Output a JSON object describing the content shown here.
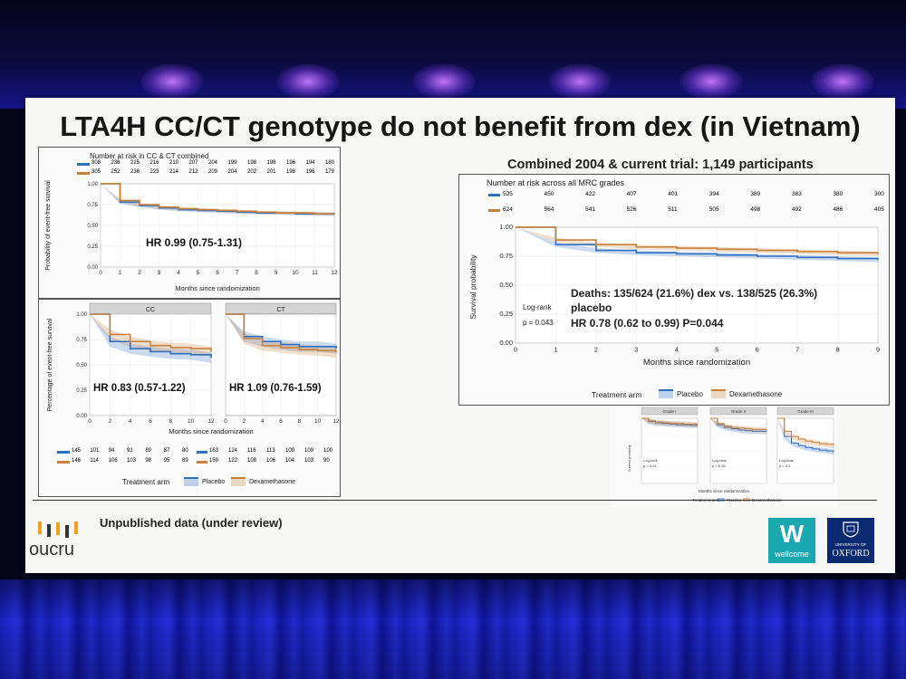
{
  "slide": {
    "title": "LTA4H CC/CT genotype do not benefit from dex (in Vietnam)",
    "footer_note": "Unpublished data (under review)",
    "logo_oucru": "oucru",
    "logo_wellcome_letter": "W",
    "logo_wellcome": "wellcome",
    "logo_oxford_small": "UNIVERSITY OF",
    "logo_oxford": "OXFORD"
  },
  "colors": {
    "placebo": "#2f6fc0",
    "dex": "#c8803a",
    "title": "#161616",
    "screen": "#f6f6f4"
  },
  "left_top": {
    "risk_title": "Number at risk in CC & CT combined",
    "risk_placebo": [
      "308",
      "238",
      "225",
      "216",
      "210",
      "207",
      "204",
      "199",
      "198",
      "198",
      "196",
      "194",
      "180"
    ],
    "risk_dex": [
      "305",
      "252",
      "236",
      "223",
      "214",
      "212",
      "209",
      "204",
      "202",
      "201",
      "198",
      "196",
      "179"
    ],
    "ylabel": "Probability of event-free survival",
    "xlabel": "Months since randomization",
    "yticks": [
      "1.00",
      "0.75",
      "0.50",
      "0.25",
      "0.00"
    ],
    "xticks": [
      "0",
      "1",
      "2",
      "3",
      "4",
      "5",
      "6",
      "7",
      "8",
      "9",
      "10",
      "11",
      "12"
    ],
    "hr_text": "HR 0.99 (0.75-1.31)"
  },
  "left_bottom": {
    "ylabel": "Percentage of event-free survival",
    "xlabel": "Months since randomization",
    "yticks": [
      "1.00",
      "0.75",
      "0.50",
      "0.25",
      "0.00"
    ],
    "xticks": [
      "0",
      "2",
      "4",
      "6",
      "8",
      "10",
      "12"
    ],
    "cc_title": "CC",
    "ct_title": "CT",
    "cc_hr": "HR 0.83 (0.57-1.22)",
    "ct_hr": "HR 1.09 (0.76-1.59)",
    "cc_risk_placebo": [
      "145",
      "101",
      "94",
      "91",
      "89",
      "87",
      "80"
    ],
    "cc_risk_dex": [
      "146",
      "114",
      "106",
      "103",
      "98",
      "95",
      "89"
    ],
    "ct_risk_placebo": [
      "163",
      "124",
      "116",
      "113",
      "109",
      "109",
      "100"
    ],
    "ct_risk_dex": [
      "159",
      "122",
      "108",
      "106",
      "104",
      "103",
      "90"
    ],
    "legend_title": "Treatment arm",
    "legend_placebo": "Placebo",
    "legend_dex": "Dexamethasone"
  },
  "right": {
    "header": "Combined 2004 & current trial: 1,149 participants",
    "risk_title": "Number at risk across all MRC grades",
    "risk_placebo": [
      "525",
      "450",
      "422",
      "407",
      "401",
      "394",
      "389",
      "383",
      "380",
      "300"
    ],
    "risk_dex": [
      "624",
      "564",
      "541",
      "526",
      "511",
      "505",
      "498",
      "492",
      "486",
      "405"
    ],
    "ylabel": "Survival probability",
    "xlabel": "Months since randomization",
    "yticks": [
      "1.00",
      "0.75",
      "0.50",
      "0.25",
      "0.00"
    ],
    "xticks": [
      "0",
      "1",
      "2",
      "3",
      "4",
      "5",
      "6",
      "7",
      "8",
      "9"
    ],
    "deaths_line1": "Deaths: 135/624 (21.6%) dex vs. 138/525 (26.3%)",
    "deaths_line2": "placebo",
    "hr_text": "HR 0.78 (0.62 to 0.99) P=0.044",
    "logrank_label": "Log-rank",
    "logrank_p": "p = 0.043",
    "legend_title": "Treatment arm",
    "legend_placebo": "Placebo",
    "legend_dex": "Dexamethasone",
    "grade_titles": [
      "Grade I",
      "Grade II",
      "Grade III"
    ],
    "grade_logrank": [
      "Log-rank",
      "Log-rank",
      "Log-rank"
    ],
    "grade_p": [
      "p = 0.24",
      "p = 0.25",
      "p = 0.1"
    ],
    "small_xlabel": "Months since randomization",
    "small_ylabel": "Survival probability"
  },
  "chart_data": [
    {
      "type": "line",
      "title": "",
      "xlabel": "Months since randomization",
      "ylabel": "Probability of event-free survival",
      "x": [
        0,
        1,
        2,
        3,
        4,
        5,
        6,
        7,
        8,
        9,
        10,
        11,
        12
      ],
      "xlim": [
        0,
        12
      ],
      "ylim": [
        0,
        1
      ],
      "series": [
        {
          "name": "Placebo",
          "values": [
            1.0,
            0.78,
            0.74,
            0.71,
            0.69,
            0.68,
            0.67,
            0.66,
            0.65,
            0.65,
            0.64,
            0.64,
            0.63
          ]
        },
        {
          "name": "Dexamethasone",
          "values": [
            1.0,
            0.8,
            0.75,
            0.72,
            0.7,
            0.69,
            0.68,
            0.67,
            0.66,
            0.65,
            0.65,
            0.64,
            0.64
          ]
        }
      ]
    },
    {
      "type": "line",
      "title": "CC",
      "xlabel": "Months since randomization",
      "ylabel": "Percentage of event-free survival",
      "x": [
        0,
        2,
        4,
        6,
        8,
        10,
        12
      ],
      "xlim": [
        0,
        12
      ],
      "ylim": [
        0,
        1
      ],
      "series": [
        {
          "name": "Placebo",
          "values": [
            1.0,
            0.73,
            0.66,
            0.63,
            0.61,
            0.6,
            0.57
          ]
        },
        {
          "name": "Dexamethasone",
          "values": [
            1.0,
            0.8,
            0.73,
            0.69,
            0.67,
            0.66,
            0.63
          ]
        }
      ]
    },
    {
      "type": "line",
      "title": "CT",
      "xlabel": "Months since randomization",
      "ylabel": "Percentage of event-free survival",
      "x": [
        0,
        2,
        4,
        6,
        8,
        10,
        12
      ],
      "xlim": [
        0,
        12
      ],
      "ylim": [
        0,
        1
      ],
      "series": [
        {
          "name": "Placebo",
          "values": [
            1.0,
            0.78,
            0.73,
            0.7,
            0.68,
            0.68,
            0.66
          ]
        },
        {
          "name": "Dexamethasone",
          "values": [
            1.0,
            0.76,
            0.69,
            0.67,
            0.65,
            0.64,
            0.62
          ]
        }
      ]
    },
    {
      "type": "line",
      "title": "",
      "xlabel": "Months since randomization",
      "ylabel": "Survival probability",
      "x": [
        0,
        1,
        2,
        3,
        4,
        5,
        6,
        7,
        8,
        9
      ],
      "xlim": [
        0,
        9
      ],
      "ylim": [
        0,
        1
      ],
      "series": [
        {
          "name": "Placebo",
          "values": [
            1.0,
            0.85,
            0.8,
            0.78,
            0.77,
            0.76,
            0.75,
            0.74,
            0.73,
            0.72
          ]
        },
        {
          "name": "Dexamethasone",
          "values": [
            1.0,
            0.89,
            0.85,
            0.83,
            0.82,
            0.81,
            0.8,
            0.79,
            0.78,
            0.77
          ]
        }
      ]
    }
  ]
}
